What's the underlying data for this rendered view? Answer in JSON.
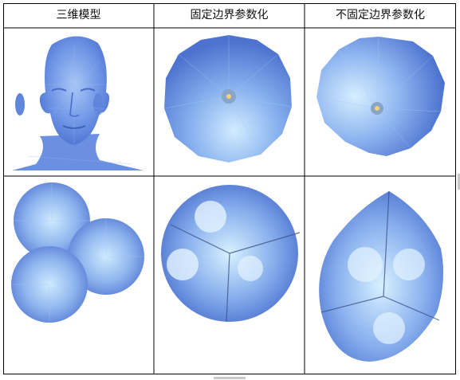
{
  "headers": [
    "三维模型",
    "固定边界参数化",
    "不固定边界参数化"
  ],
  "rows": [
    {
      "cells": [
        "face-model-image",
        "fixed-boundary-disk-image",
        "free-boundary-disk-image"
      ]
    },
    {
      "cells": [
        "three-circles-mesh-image",
        "fixed-boundary-three-circles-image",
        "free-boundary-three-circles-image"
      ]
    }
  ],
  "colors": {
    "mesh_blue": "#6f95e6",
    "mesh_light": "#c9e8ff",
    "grid_line": "#000000"
  }
}
